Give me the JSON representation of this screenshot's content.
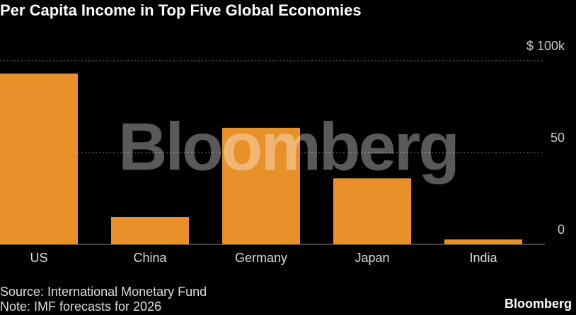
{
  "chart_data": {
    "type": "bar",
    "title": "Per Capita Income in Top Five Global Economies",
    "categories": [
      "US",
      "China",
      "Germany",
      "Japan",
      "India"
    ],
    "values": [
      93,
      15,
      63.5,
      36,
      2.7
    ],
    "color": "#e8912a",
    "ylim": [
      0,
      100
    ],
    "yticks": [
      0,
      50,
      {
        "value": 100,
        "label": "$ 100k"
      }
    ],
    "grid": true,
    "source": "Source: International Monetary Fund",
    "note": "Note: IMF forecasts for 2026",
    "watermark": "Bloomberg",
    "logo": "Bloomberg"
  }
}
